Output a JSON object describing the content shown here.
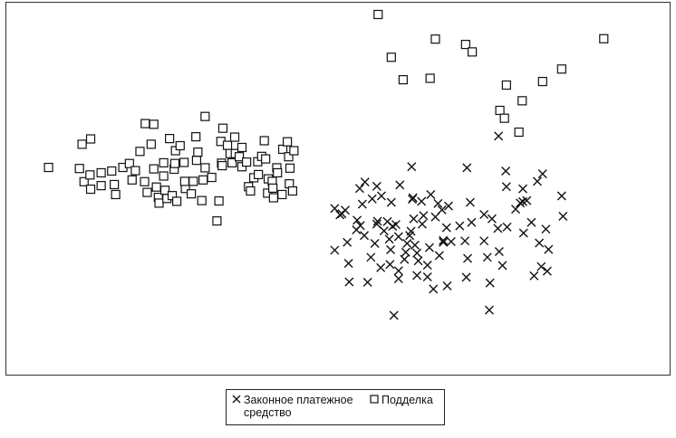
{
  "chart_data": {
    "type": "scatter",
    "title": "",
    "xlabel": "",
    "ylabel": "",
    "grid": false,
    "legend_position": "bottom-center",
    "axes": {
      "ticks_shown": false,
      "xlim": [
        0,
        100
      ],
      "ylim": [
        0,
        100
      ]
    },
    "series": [
      {
        "name": "Законное платежное средство",
        "marker": "x",
        "color": "#111111",
        "points": [
          [
            74.4,
            65.9
          ],
          [
            53.3,
            51.2
          ],
          [
            54.1,
            53.0
          ],
          [
            55.9,
            51.8
          ],
          [
            55.2,
            48.3
          ],
          [
            53.7,
            46.8
          ],
          [
            50.6,
            44.1
          ],
          [
            49.5,
            45.6
          ],
          [
            52.9,
            42.3
          ],
          [
            56.0,
            42.0
          ],
          [
            57.5,
            41.9
          ],
          [
            58.3,
            40.6
          ],
          [
            57.0,
            39.3
          ],
          [
            59.2,
            37.7
          ],
          [
            61.1,
            39.2
          ],
          [
            61.5,
            42.7
          ],
          [
            62.7,
            47.6
          ],
          [
            61.4,
            48.6
          ],
          [
            64.1,
            49.5
          ],
          [
            65.2,
            47.0
          ],
          [
            65.8,
            45.2
          ],
          [
            64.8,
            43.2
          ],
          [
            63.0,
            43.6
          ],
          [
            62.8,
            41.2
          ],
          [
            60.9,
            38.0
          ],
          [
            60.5,
            35.8
          ],
          [
            61.7,
            35.3
          ],
          [
            60.3,
            33.3
          ],
          [
            58.0,
            34.0
          ],
          [
            62.0,
            33.1
          ],
          [
            63.9,
            34.6
          ],
          [
            65.4,
            32.4
          ],
          [
            66.0,
            36.6
          ],
          [
            66.5,
            40.2
          ],
          [
            68.5,
            40.7
          ],
          [
            67.2,
            36.3
          ],
          [
            69.3,
            36.5
          ],
          [
            70.3,
            41.7
          ],
          [
            69.7,
            31.6
          ],
          [
            72.7,
            31.9
          ],
          [
            74.5,
            33.5
          ],
          [
            70.1,
            47.3
          ],
          [
            73.4,
            42.7
          ],
          [
            74.3,
            40.0
          ],
          [
            75.7,
            40.4
          ],
          [
            77.0,
            45.4
          ],
          [
            79.4,
            41.7
          ],
          [
            80.6,
            35.9
          ],
          [
            82.0,
            34.1
          ],
          [
            81.6,
            39.8
          ],
          [
            78.2,
            38.7
          ],
          [
            78.1,
            51.1
          ],
          [
            78.1,
            47.5
          ],
          [
            78.7,
            47.8
          ],
          [
            80.3,
            53.2
          ],
          [
            84.0,
            49.1
          ],
          [
            84.2,
            43.4
          ],
          [
            81.8,
            28.0
          ],
          [
            75.0,
            29.6
          ],
          [
            72.2,
            36.5
          ],
          [
            73.1,
            24.7
          ],
          [
            79.8,
            26.7
          ],
          [
            80.9,
            29.3
          ],
          [
            73.0,
            17.1
          ],
          [
            69.5,
            26.3
          ],
          [
            66.6,
            23.9
          ],
          [
            64.5,
            23.0
          ],
          [
            63.6,
            26.4
          ],
          [
            62.0,
            26.8
          ],
          [
            59.2,
            25.9
          ],
          [
            58.5,
            15.6
          ],
          [
            54.5,
            24.9
          ],
          [
            54.0,
            38.0
          ],
          [
            53.4,
            40.8
          ],
          [
            51.1,
            45.1
          ],
          [
            50.3,
            43.8
          ],
          [
            49.5,
            33.9
          ],
          [
            51.4,
            36.1
          ],
          [
            51.6,
            30.2
          ],
          [
            51.7,
            25.0
          ],
          [
            52.8,
            39.6
          ],
          [
            55.6,
            35.8
          ],
          [
            57.8,
            37.0
          ],
          [
            59.2,
            28.1
          ],
          [
            58.1,
            47.3
          ],
          [
            59.4,
            52.2
          ],
          [
            60.1,
            31.3
          ],
          [
            62.2,
            30.9
          ],
          [
            63.6,
            29.7
          ],
          [
            66.0,
            36.1
          ],
          [
            55.0,
            31.9
          ],
          [
            56.5,
            29.0
          ],
          [
            57.9,
            29.9
          ],
          [
            58.8,
            41.1
          ],
          [
            56.6,
            49.1
          ],
          [
            55.9,
            41.2
          ],
          [
            61.3,
            48.2
          ],
          [
            66.8,
            46.3
          ],
          [
            72.2,
            43.9
          ],
          [
            75.6,
            51.7
          ],
          [
            77.7,
            47.1
          ],
          [
            69.6,
            57.0
          ],
          [
            61.2,
            57.3
          ],
          [
            75.5,
            56.1
          ],
          [
            81.1,
            55.3
          ]
        ]
      },
      {
        "name": "Подделка",
        "marker": "square",
        "color": "#111111",
        "points": [
          [
            56.1,
            100
          ],
          [
            64.8,
            93.1
          ],
          [
            69.4,
            91.6
          ],
          [
            58.1,
            88.0
          ],
          [
            70.4,
            89.5
          ],
          [
            90.4,
            93.2
          ],
          [
            59.9,
            81.7
          ],
          [
            64.0,
            82.1
          ],
          [
            81.1,
            81.2
          ],
          [
            84.0,
            84.7
          ],
          [
            75.6,
            80.2
          ],
          [
            74.6,
            73.1
          ],
          [
            78.0,
            75.8
          ],
          [
            75.3,
            70.9
          ],
          [
            77.5,
            67.0
          ],
          [
            6.0,
            57.1
          ],
          [
            11.1,
            63.6
          ],
          [
            12.4,
            65.1
          ],
          [
            10.7,
            56.8
          ],
          [
            11.4,
            53.1
          ],
          [
            12.4,
            51.0
          ],
          [
            12.3,
            55.0
          ],
          [
            14.0,
            55.6
          ],
          [
            14.0,
            52.0
          ],
          [
            15.6,
            56.1
          ],
          [
            16.0,
            52.3
          ],
          [
            16.2,
            49.5
          ],
          [
            17.3,
            57.1
          ],
          [
            18.3,
            58.2
          ],
          [
            18.7,
            53.6
          ],
          [
            19.2,
            56.2
          ],
          [
            19.9,
            61.6
          ],
          [
            20.6,
            53.1
          ],
          [
            20.7,
            69.4
          ],
          [
            21.0,
            50.1
          ],
          [
            21.6,
            63.6
          ],
          [
            22.0,
            56.7
          ],
          [
            22.0,
            69.2
          ],
          [
            22.4,
            51.6
          ],
          [
            22.7,
            48.7
          ],
          [
            22.8,
            47.1
          ],
          [
            23.5,
            54.7
          ],
          [
            23.5,
            58.4
          ],
          [
            23.7,
            50.7
          ],
          [
            24.0,
            48.4
          ],
          [
            24.4,
            65.2
          ],
          [
            24.8,
            49.2
          ],
          [
            25.1,
            56.6
          ],
          [
            25.2,
            58.2
          ],
          [
            25.3,
            61.8
          ],
          [
            25.5,
            47.6
          ],
          [
            26.0,
            63.2
          ],
          [
            26.6,
            58.5
          ],
          [
            26.8,
            51.2
          ],
          [
            26.7,
            53.2
          ],
          [
            27.7,
            49.7
          ],
          [
            28.0,
            53.2
          ],
          [
            28.5,
            59.1
          ],
          [
            28.7,
            61.4
          ],
          [
            29.3,
            47.8
          ],
          [
            29.5,
            53.6
          ],
          [
            29.8,
            71.4
          ],
          [
            28.4,
            65.7
          ],
          [
            29.8,
            57.0
          ],
          [
            30.8,
            54.3
          ],
          [
            31.9,
            47.7
          ],
          [
            32.3,
            58.3
          ],
          [
            32.4,
            57.6
          ],
          [
            31.6,
            42.1
          ],
          [
            32.2,
            64.4
          ],
          [
            32.5,
            68.1
          ],
          [
            33.2,
            63.3
          ],
          [
            33.6,
            61.0
          ],
          [
            33.9,
            58.4
          ],
          [
            34.3,
            65.6
          ],
          [
            34.4,
            61.0
          ],
          [
            35.0,
            60.1
          ],
          [
            35.4,
            57.3
          ],
          [
            35.4,
            62.7
          ],
          [
            36.1,
            58.6
          ],
          [
            36.4,
            51.7
          ],
          [
            36.7,
            50.5
          ],
          [
            37.2,
            54.2
          ],
          [
            37.8,
            58.7
          ],
          [
            37.9,
            55.1
          ],
          [
            38.4,
            60.2
          ],
          [
            38.8,
            64.6
          ],
          [
            39.0,
            59.5
          ],
          [
            39.3,
            49.9
          ],
          [
            39.4,
            53.9
          ],
          [
            40.0,
            53.2
          ],
          [
            40.1,
            51.3
          ],
          [
            40.2,
            48.6
          ],
          [
            40.7,
            57.0
          ],
          [
            40.8,
            55.6
          ],
          [
            41.5,
            49.5
          ],
          [
            41.6,
            62.2
          ],
          [
            42.3,
            64.3
          ],
          [
            42.5,
            60.1
          ],
          [
            42.7,
            56.9
          ],
          [
            42.6,
            52.5
          ],
          [
            43.1,
            50.5
          ],
          [
            43.3,
            61.8
          ]
        ]
      }
    ]
  },
  "legend": {
    "items": [
      {
        "symbol": "x",
        "label_line1": "Законное платежное",
        "label_line2": "средство"
      },
      {
        "symbol": "square",
        "label_line1": "Подделка",
        "label_line2": ""
      }
    ]
  }
}
